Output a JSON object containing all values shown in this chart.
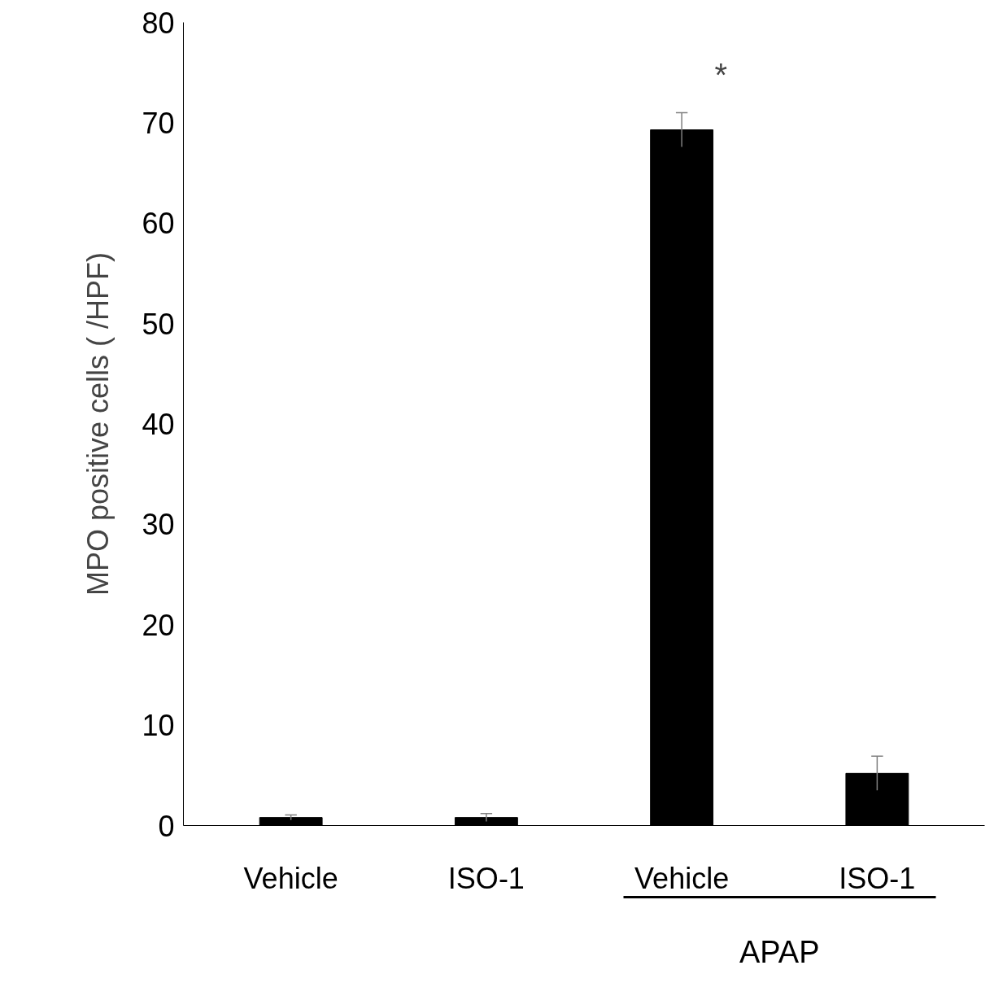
{
  "chart_data": {
    "type": "bar",
    "ylabel": "MPO positive cells ( /HPF)",
    "categories": [
      "Vehicle",
      "ISO-1",
      "Vehicle",
      "ISO-1"
    ],
    "values": [
      0.8,
      0.8,
      69.3,
      5.2
    ],
    "errors": [
      0.25,
      0.4,
      1.7,
      1.7
    ],
    "value_labels": [
      null,
      null,
      "*",
      null
    ],
    "color": "#000000",
    "ylim": [
      0,
      80
    ],
    "yticks": [
      0,
      10,
      20,
      30,
      40,
      50,
      60,
      70,
      80
    ],
    "grid": false,
    "annotations": [
      "APAP"
    ]
  }
}
